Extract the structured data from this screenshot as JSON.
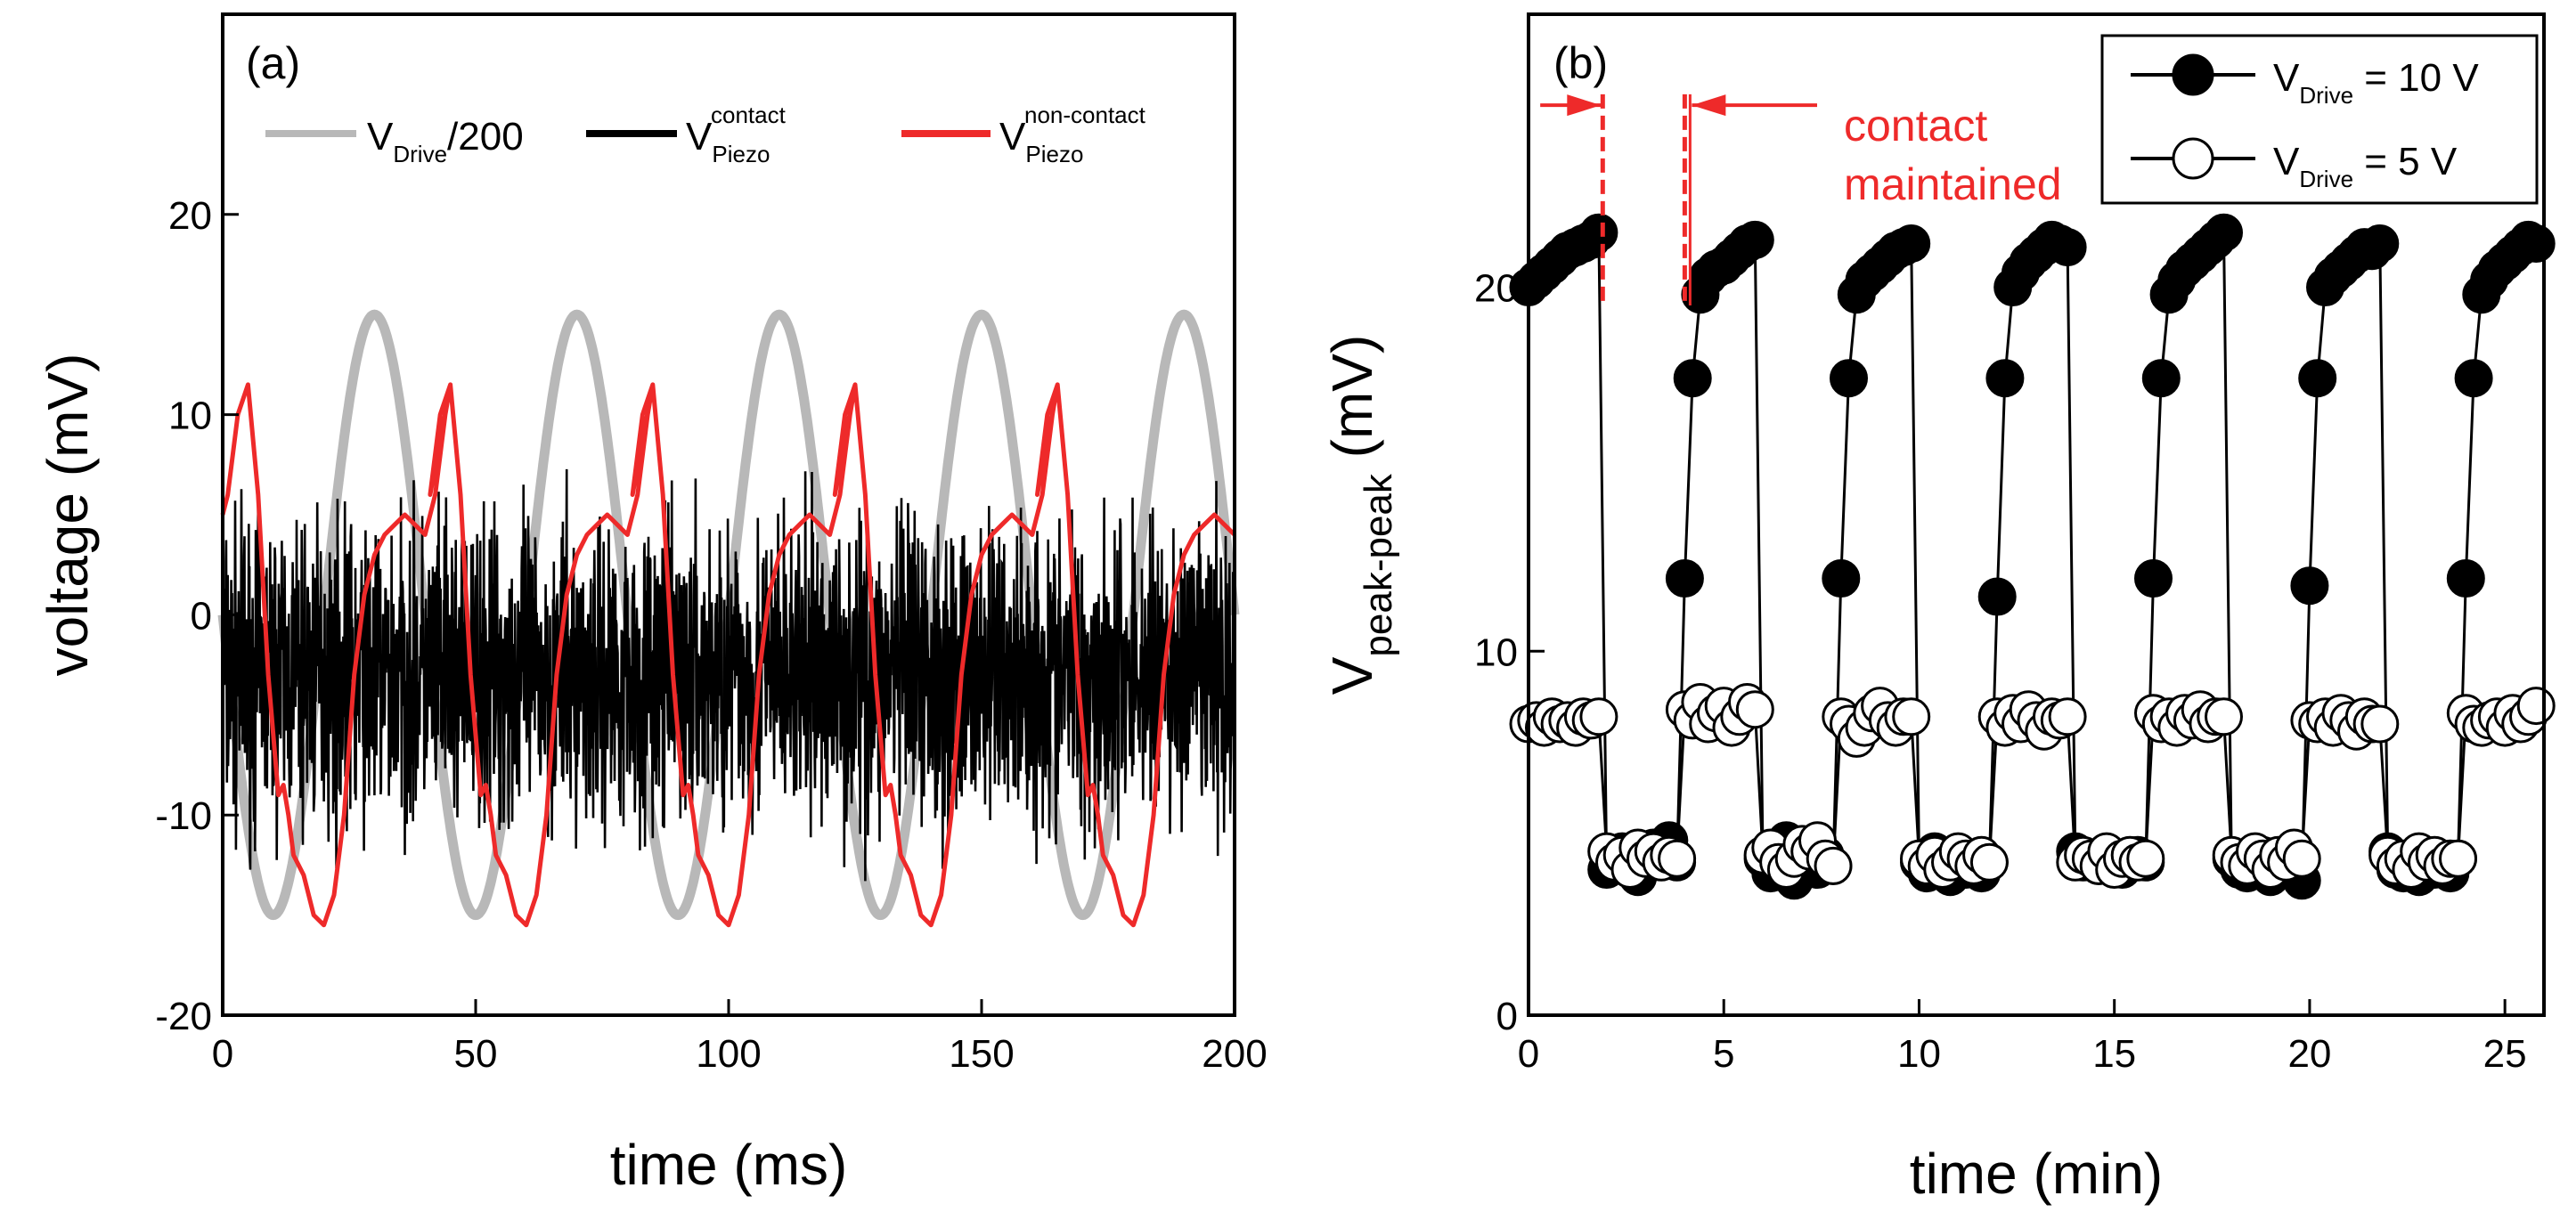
{
  "chart_data": [
    {
      "type": "line",
      "panel_label": "(a)",
      "xlabel": "time (ms)",
      "ylabel": "voltage (mV)",
      "xlim": [
        0,
        200
      ],
      "ylim": [
        -20,
        30
      ],
      "x_ticks": [
        0,
        50,
        100,
        150,
        200
      ],
      "y_ticks": [
        -20,
        -10,
        0,
        10,
        20
      ],
      "grid": false,
      "legend_position": "top",
      "series": [
        {
          "legend_main": "V",
          "legend_sub": "Drive",
          "legend_sup": "",
          "legend_tail": "/200",
          "color": "#b8b8b8",
          "description_values": {
            "waveform": "sine",
            "period_ms": 40,
            "amplitude_mV": 15,
            "first_max_ms": 30
          }
        },
        {
          "legend_main": "V",
          "legend_sub": "Piezo",
          "legend_sup": "contact",
          "legend_tail": "",
          "color": "#000000",
          "description_values": {
            "waveform": "noise",
            "mean_mV": -3,
            "typical_spread_mV": 5
          }
        },
        {
          "legend_main": "V",
          "legend_sub": "Piezo",
          "legend_sup": "non-contact",
          "legend_tail": "",
          "color": "#ee2a2a",
          "x": [
            0,
            1,
            3,
            5,
            7,
            9,
            11,
            12,
            13,
            14,
            16,
            18,
            20,
            22,
            24,
            26,
            28,
            30,
            32,
            34,
            36,
            38,
            40,
            42,
            44,
            45
          ],
          "y": [
            5,
            6,
            10,
            11.5,
            6,
            -3,
            -9,
            -8.5,
            -10,
            -12,
            -13,
            -15,
            -15.5,
            -14,
            -10,
            -3,
            1,
            3,
            4,
            4.5,
            5,
            4.5,
            4,
            6,
            10,
            11.5
          ],
          "period_ms": 40
        }
      ]
    },
    {
      "type": "scatter",
      "panel_label": "(b)",
      "xlabel": "time (min)",
      "ylabel_main": "V",
      "ylabel_sub": "peak-peak",
      "ylabel_tail": " (mV)",
      "xlim": [
        0,
        26
      ],
      "ylim": [
        0,
        27.5
      ],
      "x_ticks": [
        0,
        5,
        10,
        15,
        20,
        25
      ],
      "y_ticks": [
        0,
        10,
        20
      ],
      "grid": false,
      "legend_position": "top-right",
      "series": [
        {
          "legend_main": "V",
          "legend_sub": "Drive",
          "legend_tail": "= 10 V",
          "marker": "filled-circle",
          "x": [
            0,
            0.2,
            0.4,
            0.6,
            0.8,
            1.0,
            1.2,
            1.4,
            1.6,
            1.8,
            2.0,
            2.2,
            2.4,
            2.6,
            2.8,
            3.0,
            3.2,
            3.4,
            3.6,
            3.8,
            4.0,
            4.2,
            4.4,
            4.6,
            4.8,
            5.0,
            5.2,
            5.4,
            5.6,
            5.8,
            6.0,
            6.2,
            6.4,
            6.6,
            6.8,
            7.0,
            7.2,
            7.4,
            7.6,
            7.8,
            8.0,
            8.2,
            8.4,
            8.6,
            8.8,
            9.0,
            9.2,
            9.4,
            9.6,
            9.8,
            10.0,
            10.2,
            10.4,
            10.6,
            10.8,
            11.0,
            11.2,
            11.4,
            11.6,
            11.8,
            12.0,
            12.2,
            12.4,
            12.6,
            12.8,
            13.0,
            13.2,
            13.4,
            13.6,
            13.8,
            14.0,
            14.2,
            14.4,
            14.6,
            14.8,
            15.0,
            15.2,
            15.4,
            15.6,
            15.8,
            16.0,
            16.2,
            16.4,
            16.6,
            16.8,
            17.0,
            17.2,
            17.4,
            17.6,
            17.8,
            18.0,
            18.2,
            18.4,
            18.6,
            18.8,
            19.0,
            19.2,
            19.4,
            19.6,
            19.8,
            20.0,
            20.2,
            20.4,
            20.6,
            20.8,
            21.0,
            21.2,
            21.4,
            21.6,
            21.8,
            22.0,
            22.2,
            22.4,
            22.6,
            22.8,
            23.0,
            23.2,
            23.4,
            23.6,
            23.8,
            24.0,
            24.2,
            24.4,
            24.6,
            24.8,
            25.0,
            25.2,
            25.4,
            25.6,
            25.8
          ],
          "y": [
            20.0,
            20.2,
            20.4,
            20.6,
            20.8,
            21.0,
            21.1,
            21.2,
            21.3,
            21.5,
            4.0,
            4.3,
            4.5,
            4.1,
            3.8,
            4.2,
            4.6,
            4.4,
            4.8,
            4.2,
            12.0,
            17.5,
            19.8,
            20.3,
            20.5,
            20.6,
            20.8,
            21.0,
            21.2,
            21.3,
            4.3,
            3.9,
            4.6,
            4.8,
            3.7,
            4.2,
            4.5,
            4.0,
            4.4,
            4.1,
            12.0,
            17.5,
            19.8,
            20.2,
            20.4,
            20.6,
            20.8,
            21.0,
            21.1,
            21.2,
            4.2,
            3.9,
            4.5,
            4.2,
            3.8,
            4.4,
            4.0,
            4.3,
            3.9,
            4.2,
            11.5,
            17.5,
            20.0,
            20.4,
            20.7,
            20.9,
            21.1,
            21.3,
            21.2,
            21.1,
            4.5,
            4.2,
            4.3,
            4.1,
            4.4,
            4.2,
            4.0,
            4.3,
            4.4,
            4.2,
            12.0,
            17.5,
            19.8,
            20.2,
            20.5,
            20.7,
            20.9,
            21.1,
            21.3,
            21.5,
            4.3,
            4.0,
            3.9,
            4.2,
            4.4,
            3.8,
            4.3,
            4.1,
            4.5,
            3.7,
            11.8,
            17.5,
            20.0,
            20.3,
            20.5,
            20.7,
            20.9,
            21.1,
            21.0,
            21.2,
            4.5,
            4.0,
            3.9,
            4.2,
            3.8,
            4.4,
            4.0,
            4.2,
            3.9,
            4.3,
            12.0,
            17.5,
            19.8,
            20.2,
            20.5,
            20.7,
            20.9,
            21.1,
            21.3,
            21.2
          ]
        },
        {
          "legend_main": "V",
          "legend_sub": "Drive",
          "legend_tail": "= 5 V",
          "marker": "open-circle",
          "x": [
            0,
            0.2,
            0.4,
            0.6,
            0.8,
            1.0,
            1.2,
            1.4,
            1.6,
            1.8,
            2.0,
            2.2,
            2.4,
            2.6,
            2.8,
            3.0,
            3.2,
            3.4,
            3.6,
            3.8,
            4.0,
            4.2,
            4.4,
            4.6,
            4.8,
            5.0,
            5.2,
            5.4,
            5.6,
            5.8,
            6.0,
            6.2,
            6.4,
            6.6,
            6.8,
            7.0,
            7.2,
            7.4,
            7.6,
            7.8,
            8.0,
            8.2,
            8.4,
            8.6,
            8.8,
            9.0,
            9.2,
            9.4,
            9.6,
            9.8,
            10.0,
            10.2,
            10.4,
            10.6,
            10.8,
            11.0,
            11.2,
            11.4,
            11.6,
            11.8,
            12.0,
            12.2,
            12.4,
            12.6,
            12.8,
            13.0,
            13.2,
            13.4,
            13.6,
            13.8,
            14.0,
            14.2,
            14.4,
            14.6,
            14.8,
            15.0,
            15.2,
            15.4,
            15.6,
            15.8,
            16.0,
            16.2,
            16.4,
            16.6,
            16.8,
            17.0,
            17.2,
            17.4,
            17.6,
            17.8,
            18.0,
            18.2,
            18.4,
            18.6,
            18.8,
            19.0,
            19.2,
            19.4,
            19.6,
            19.8,
            20.0,
            20.2,
            20.4,
            20.6,
            20.8,
            21.0,
            21.2,
            21.4,
            21.6,
            21.8,
            22.0,
            22.2,
            22.4,
            22.6,
            22.8,
            23.0,
            23.2,
            23.4,
            23.6,
            23.8,
            24.0,
            24.2,
            24.4,
            24.6,
            24.8,
            25.0,
            25.2,
            25.4,
            25.6,
            25.8
          ],
          "y": [
            8.0,
            8.1,
            7.9,
            8.2,
            8.0,
            8.1,
            7.9,
            8.2,
            8.1,
            8.2,
            4.5,
            4.2,
            4.4,
            4.0,
            4.6,
            4.3,
            4.5,
            4.2,
            4.4,
            4.3,
            8.4,
            8.1,
            8.6,
            8.0,
            8.3,
            8.5,
            7.9,
            8.2,
            8.6,
            8.4,
            4.4,
            4.6,
            4.2,
            4.0,
            4.3,
            4.7,
            4.5,
            4.8,
            4.3,
            4.1,
            8.2,
            8.0,
            7.6,
            7.9,
            8.3,
            8.5,
            8.1,
            7.9,
            8.2,
            8.2,
            4.3,
            4.1,
            4.4,
            4.0,
            4.2,
            4.5,
            4.3,
            4.1,
            4.4,
            4.2,
            8.2,
            7.9,
            8.3,
            8.0,
            8.4,
            8.1,
            7.8,
            8.2,
            8.1,
            8.2,
            4.2,
            4.4,
            4.3,
            4.1,
            4.5,
            4.0,
            4.3,
            4.4,
            4.2,
            4.3,
            8.3,
            8.0,
            8.2,
            7.9,
            8.3,
            8.1,
            8.4,
            8.0,
            8.2,
            8.2,
            4.4,
            4.2,
            4.1,
            4.5,
            4.3,
            4.0,
            4.4,
            4.2,
            4.6,
            4.3,
            8.1,
            8.0,
            8.2,
            7.9,
            8.3,
            8.1,
            7.8,
            8.2,
            8.0,
            8.0,
            4.4,
            4.1,
            4.3,
            4.0,
            4.5,
            4.2,
            4.4,
            4.1,
            4.3,
            4.3,
            8.3,
            8.0,
            7.9,
            8.1,
            8.2,
            7.9,
            8.3,
            8.0,
            8.2,
            8.5
          ]
        }
      ],
      "annotation": {
        "lines": [
          "contact",
          "maintained"
        ],
        "color": "#ee2a2a",
        "markers_x_min": [
          1.9,
          4.0
        ]
      }
    }
  ]
}
